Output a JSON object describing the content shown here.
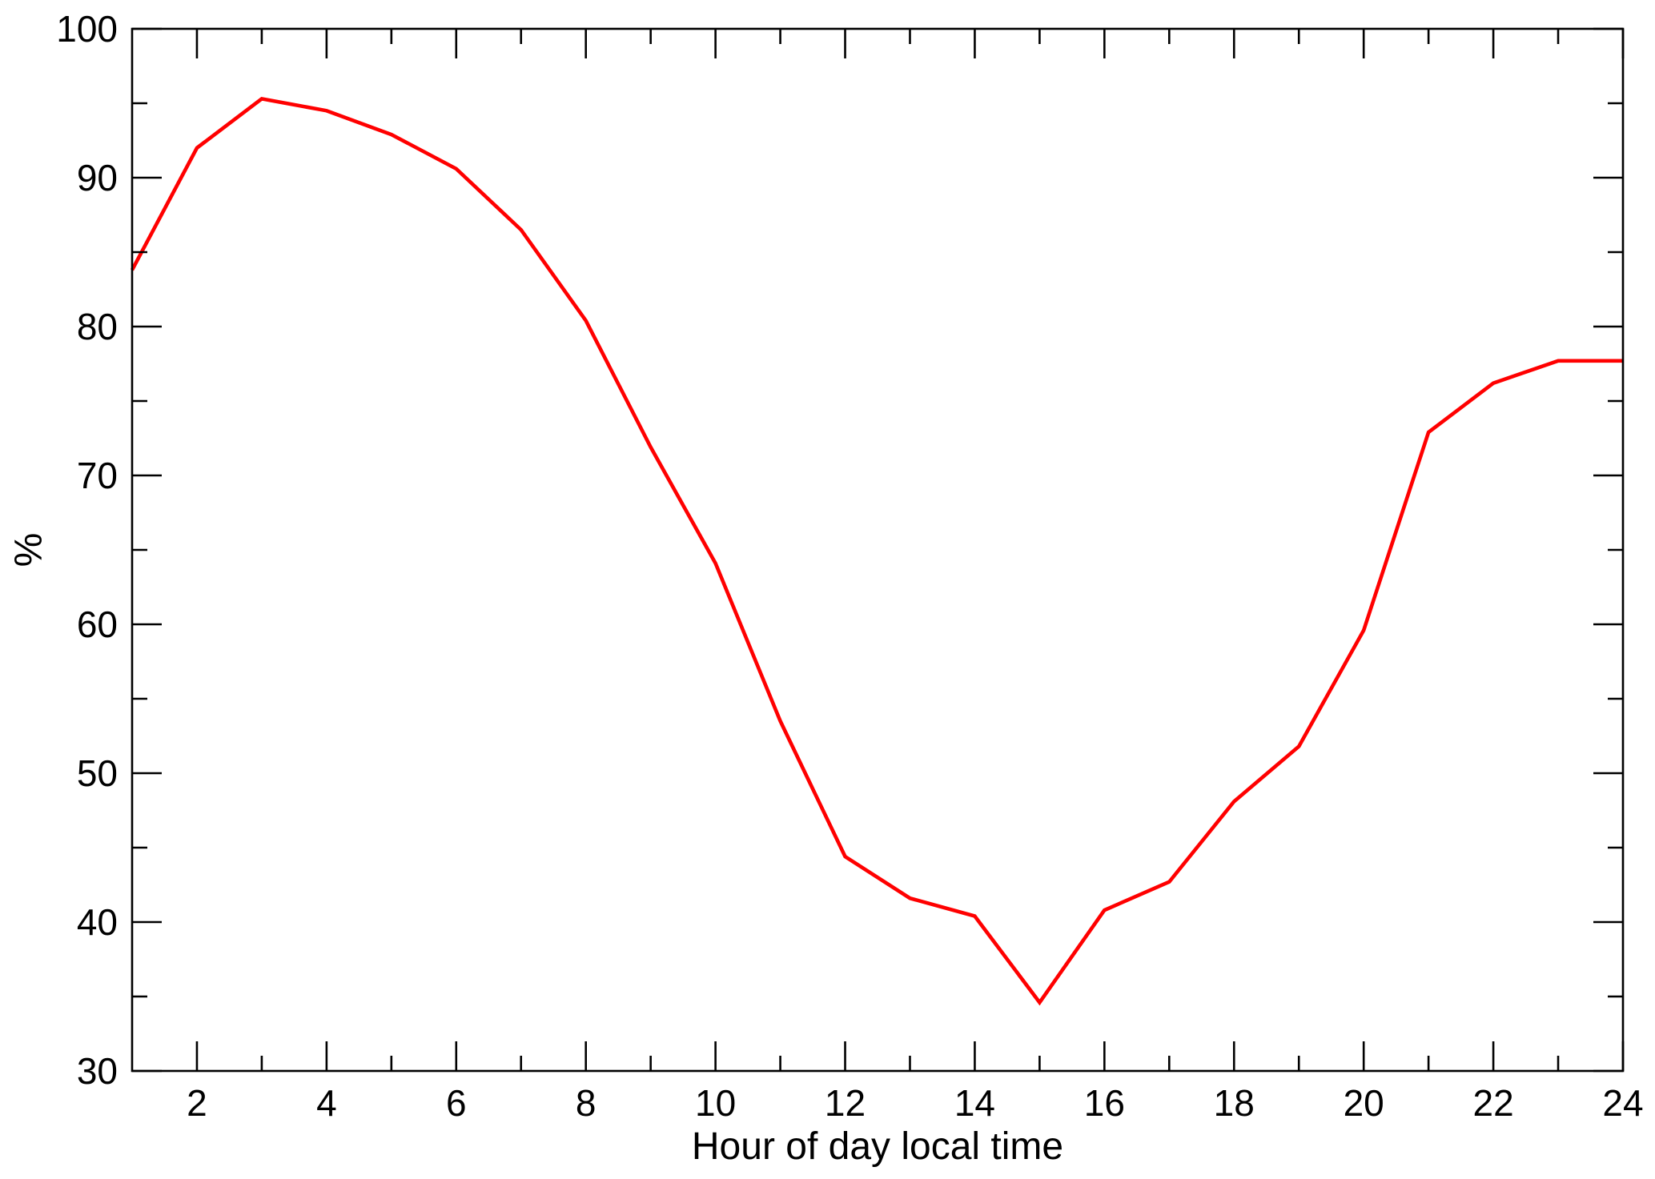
{
  "chart_data": {
    "type": "line",
    "xlabel": "Hour of day local time",
    "ylabel": "%",
    "xlim": [
      1,
      24
    ],
    "ylim": [
      30,
      100
    ],
    "x_ticks": [
      2,
      4,
      6,
      8,
      10,
      12,
      14,
      16,
      18,
      20,
      22,
      24
    ],
    "x_minor_ticks": [
      3,
      5,
      7,
      9,
      11,
      13,
      15,
      17,
      19,
      21,
      23
    ],
    "y_ticks": [
      30,
      40,
      50,
      60,
      70,
      80,
      90,
      100
    ],
    "y_minor_ticks": [
      35,
      45,
      55,
      65,
      75,
      85,
      95
    ],
    "grid": false,
    "series": [
      {
        "color": "#ff0000",
        "x": [
          1,
          2,
          3,
          4,
          5,
          6,
          7,
          8,
          9,
          10,
          11,
          12,
          13,
          14,
          15,
          16,
          17,
          18,
          19,
          20,
          21,
          22,
          23,
          24
        ],
        "y": [
          83.8,
          92.0,
          95.3,
          94.5,
          92.9,
          90.6,
          86.5,
          80.4,
          71.9,
          64.1,
          53.5,
          44.4,
          41.6,
          40.4,
          34.6,
          40.8,
          42.7,
          48.1,
          51.8,
          59.6,
          72.9,
          76.2,
          77.7,
          77.7
        ]
      }
    ],
    "colors": {
      "axis": "#000000"
    }
  }
}
